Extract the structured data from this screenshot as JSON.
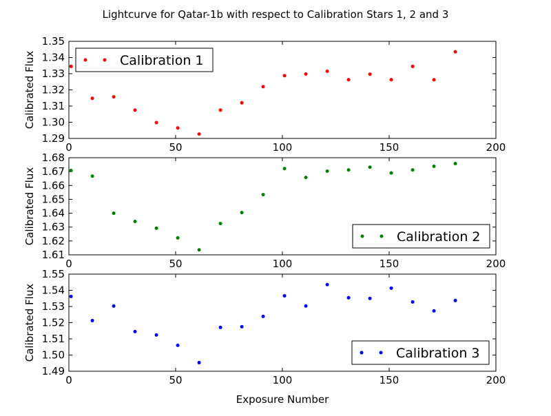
{
  "figure": {
    "title": "Lightcurve for Qatar-1b with respect to Calibration Stars 1, 2 and 3",
    "xlabel": "Exposure Number"
  },
  "chart_data": [
    {
      "type": "scatter",
      "ylabel": "Calibrated Flux",
      "xlim": [
        0,
        200
      ],
      "ylim": [
        1.29,
        1.35
      ],
      "xticks": [
        0,
        50,
        100,
        150,
        200
      ],
      "xtick_labels": [
        "0",
        "50",
        "100",
        "150",
        "200"
      ],
      "yticks": [
        1.29,
        1.3,
        1.31,
        1.32,
        1.33,
        1.34,
        1.35
      ],
      "ytick_labels": [
        "1.29",
        "1.30",
        "1.31",
        "1.32",
        "1.33",
        "1.34",
        "1.35"
      ],
      "legend": "top-left",
      "grid": false,
      "series": [
        {
          "name": "Calibration 1",
          "color": "#ff0000",
          "x": [
            1,
            11,
            21,
            31,
            41,
            51,
            61,
            71,
            81,
            91,
            101,
            111,
            121,
            131,
            141,
            151,
            161,
            171,
            181
          ],
          "y": [
            1.3345,
            1.3148,
            1.3157,
            1.3075,
            1.2998,
            1.2965,
            1.2927,
            1.3075,
            1.312,
            1.322,
            1.3288,
            1.3298,
            1.3315,
            1.3263,
            1.3297,
            1.3263,
            1.3345,
            1.3263,
            1.3435
          ]
        }
      ]
    },
    {
      "type": "scatter",
      "ylabel": "Calibrated Flux",
      "xlim": [
        0,
        200
      ],
      "ylim": [
        1.61,
        1.68
      ],
      "xticks": [
        0,
        50,
        100,
        150,
        200
      ],
      "xtick_labels": [
        "0",
        "50",
        "100",
        "150",
        "200"
      ],
      "yticks": [
        1.61,
        1.62,
        1.63,
        1.64,
        1.65,
        1.66,
        1.67,
        1.68
      ],
      "ytick_labels": [
        "1.61",
        "1.62",
        "1.63",
        "1.64",
        "1.65",
        "1.66",
        "1.67",
        "1.68"
      ],
      "legend": "bottom-right",
      "grid": false,
      "series": [
        {
          "name": "Calibration 2",
          "color": "#008000",
          "x": [
            1,
            11,
            21,
            31,
            41,
            51,
            61,
            71,
            81,
            91,
            101,
            111,
            121,
            131,
            141,
            151,
            161,
            171,
            181
          ],
          "y": [
            1.6708,
            1.6667,
            1.64,
            1.6341,
            1.6292,
            1.6222,
            1.6136,
            1.6326,
            1.6405,
            1.6534,
            1.6722,
            1.6658,
            1.6703,
            1.6712,
            1.6732,
            1.669,
            1.6712,
            1.6738,
            1.6758
          ]
        }
      ]
    },
    {
      "type": "scatter",
      "ylabel": "Calibrated Flux",
      "xlim": [
        0,
        200
      ],
      "ylim": [
        1.49,
        1.55
      ],
      "xticks": [
        0,
        50,
        100,
        150,
        200
      ],
      "xtick_labels": [
        "0",
        "50",
        "100",
        "150",
        "200"
      ],
      "yticks": [
        1.49,
        1.5,
        1.51,
        1.52,
        1.53,
        1.54,
        1.55
      ],
      "ytick_labels": [
        "1.49",
        "1.50",
        "1.51",
        "1.52",
        "1.53",
        "1.54",
        "1.55"
      ],
      "legend": "bottom-right",
      "grid": false,
      "series": [
        {
          "name": "Calibration 3",
          "color": "#0000ff",
          "x": [
            1,
            11,
            21,
            31,
            41,
            51,
            61,
            71,
            81,
            91,
            101,
            111,
            121,
            131,
            141,
            151,
            161,
            171,
            181
          ],
          "y": [
            1.5362,
            1.5213,
            1.5303,
            1.5145,
            1.5124,
            1.506,
            1.4953,
            1.5171,
            1.5175,
            1.5239,
            1.5366,
            1.5303,
            1.5435,
            1.5354,
            1.535,
            1.5413,
            1.5328,
            1.5273,
            1.5337
          ]
        }
      ]
    }
  ]
}
